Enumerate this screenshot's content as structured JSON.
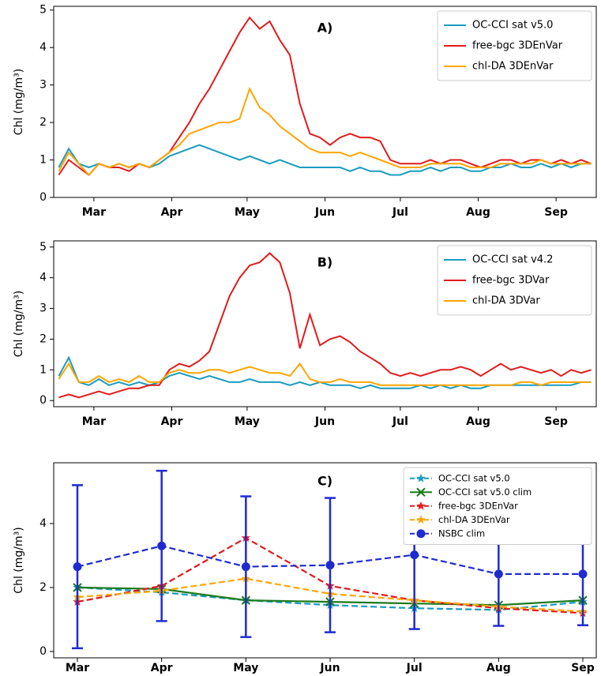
{
  "chart_data": [
    {
      "type": "line",
      "label": "A)",
      "ylabel": "Chl (mg/m³)",
      "xlim": [
        44,
        260
      ],
      "ylim": [
        0,
        5.1
      ],
      "yticks": [
        0,
        1,
        2,
        3,
        4,
        5
      ],
      "xticks": [
        {
          "value": 60,
          "label": "Mar"
        },
        {
          "value": 91,
          "label": "Apr"
        },
        {
          "value": 121,
          "label": "May"
        },
        {
          "value": 152,
          "label": "Jun"
        },
        {
          "value": 182,
          "label": "Jul"
        },
        {
          "value": 213,
          "label": "Aug"
        },
        {
          "value": 244,
          "label": "Sep"
        }
      ],
      "legend": "upper right",
      "x": [
        46,
        50,
        54,
        58,
        62,
        66,
        70,
        74,
        78,
        82,
        86,
        90,
        94,
        98,
        102,
        106,
        110,
        114,
        118,
        122,
        126,
        130,
        134,
        138,
        142,
        146,
        150,
        154,
        158,
        162,
        166,
        170,
        174,
        178,
        182,
        186,
        190,
        194,
        198,
        202,
        206,
        210,
        214,
        218,
        222,
        226,
        230,
        234,
        238,
        242,
        246,
        250,
        254,
        258
      ],
      "series": [
        {
          "name": "OC-CCI sat v5.0",
          "color": "#1a9bbf",
          "values": [
            0.8,
            1.3,
            0.9,
            0.8,
            0.9,
            0.8,
            0.9,
            0.8,
            0.9,
            0.8,
            0.9,
            1.1,
            1.2,
            1.3,
            1.4,
            1.3,
            1.2,
            1.1,
            1.0,
            1.1,
            1.0,
            0.9,
            1.0,
            0.9,
            0.8,
            0.8,
            0.8,
            0.8,
            0.8,
            0.7,
            0.8,
            0.7,
            0.7,
            0.6,
            0.6,
            0.7,
            0.7,
            0.8,
            0.7,
            0.8,
            0.8,
            0.7,
            0.7,
            0.8,
            0.8,
            0.9,
            0.8,
            0.8,
            0.9,
            0.8,
            0.9,
            0.8,
            0.9,
            0.9
          ]
        },
        {
          "name": "free-bgc 3DEnVar",
          "color": "#e31a1c",
          "values": [
            0.6,
            1.0,
            0.8,
            0.6,
            0.9,
            0.8,
            0.8,
            0.7,
            0.9,
            0.8,
            1.0,
            1.2,
            1.6,
            2.0,
            2.5,
            2.9,
            3.4,
            3.9,
            4.4,
            4.8,
            4.5,
            4.7,
            4.2,
            3.8,
            2.5,
            1.7,
            1.6,
            1.4,
            1.6,
            1.7,
            1.6,
            1.6,
            1.5,
            1.0,
            0.9,
            0.9,
            0.9,
            1.0,
            0.9,
            1.0,
            1.0,
            0.9,
            0.8,
            0.9,
            1.0,
            1.0,
            0.9,
            1.0,
            1.0,
            0.9,
            1.0,
            0.9,
            1.0,
            0.9
          ]
        },
        {
          "name": "chl-DA 3DEnVar",
          "color": "#ffa500",
          "values": [
            0.7,
            1.2,
            0.9,
            0.6,
            0.9,
            0.8,
            0.9,
            0.8,
            0.9,
            0.8,
            1.0,
            1.2,
            1.4,
            1.7,
            1.8,
            1.9,
            2.0,
            2.0,
            2.1,
            2.9,
            2.4,
            2.2,
            1.9,
            1.7,
            1.5,
            1.3,
            1.2,
            1.2,
            1.2,
            1.1,
            1.2,
            1.1,
            1.0,
            0.9,
            0.8,
            0.8,
            0.8,
            0.9,
            0.9,
            0.9,
            0.9,
            0.8,
            0.8,
            0.8,
            0.9,
            0.9,
            0.9,
            0.9,
            1.0,
            0.9,
            0.9,
            0.9,
            0.9,
            0.9
          ]
        }
      ]
    },
    {
      "type": "line",
      "label": "B)",
      "ylabel": "Chl (mg/m³)",
      "xlim": [
        44,
        260
      ],
      "ylim": [
        -0.2,
        5.2
      ],
      "yticks": [
        0,
        1,
        2,
        3,
        4,
        5
      ],
      "xticks": [
        {
          "value": 60,
          "label": "Mar"
        },
        {
          "value": 91,
          "label": "Apr"
        },
        {
          "value": 121,
          "label": "May"
        },
        {
          "value": 152,
          "label": "Jun"
        },
        {
          "value": 182,
          "label": "Jul"
        },
        {
          "value": 213,
          "label": "Aug"
        },
        {
          "value": 244,
          "label": "Sep"
        }
      ],
      "legend": "upper right",
      "x": [
        46,
        50,
        54,
        58,
        62,
        66,
        70,
        74,
        78,
        82,
        86,
        90,
        94,
        98,
        102,
        106,
        110,
        114,
        118,
        122,
        126,
        130,
        134,
        138,
        142,
        146,
        150,
        154,
        158,
        162,
        166,
        170,
        174,
        178,
        182,
        186,
        190,
        194,
        198,
        202,
        206,
        210,
        214,
        218,
        222,
        226,
        230,
        234,
        238,
        242,
        246,
        250,
        254,
        258
      ],
      "series": [
        {
          "name": "OC-CCI sat v4.2",
          "color": "#1a9bbf",
          "values": [
            0.8,
            1.4,
            0.6,
            0.5,
            0.7,
            0.5,
            0.6,
            0.5,
            0.6,
            0.5,
            0.6,
            0.8,
            0.9,
            0.8,
            0.7,
            0.8,
            0.7,
            0.6,
            0.6,
            0.7,
            0.6,
            0.6,
            0.6,
            0.5,
            0.6,
            0.5,
            0.6,
            0.5,
            0.5,
            0.5,
            0.4,
            0.5,
            0.4,
            0.4,
            0.4,
            0.4,
            0.5,
            0.4,
            0.5,
            0.4,
            0.5,
            0.4,
            0.4,
            0.5,
            0.5,
            0.5,
            0.5,
            0.5,
            0.5,
            0.5,
            0.5,
            0.5,
            0.6,
            0.6
          ]
        },
        {
          "name": "free-bgc 3DVar",
          "color": "#e31a1c",
          "values": [
            0.1,
            0.2,
            0.1,
            0.2,
            0.3,
            0.2,
            0.3,
            0.4,
            0.4,
            0.5,
            0.5,
            1.0,
            1.2,
            1.1,
            1.3,
            1.6,
            2.5,
            3.4,
            4.0,
            4.4,
            4.5,
            4.8,
            4.5,
            3.5,
            1.7,
            2.8,
            1.8,
            2.0,
            2.1,
            1.9,
            1.6,
            1.4,
            1.2,
            0.9,
            0.8,
            0.9,
            0.8,
            0.9,
            1.0,
            1.0,
            1.1,
            1.0,
            0.8,
            1.0,
            1.2,
            1.0,
            1.1,
            1.0,
            0.9,
            1.0,
            0.8,
            1.0,
            0.9,
            1.0
          ]
        },
        {
          "name": "chl-DA 3DVar",
          "color": "#ffa500",
          "values": [
            0.7,
            1.2,
            0.6,
            0.6,
            0.8,
            0.6,
            0.7,
            0.6,
            0.8,
            0.6,
            0.6,
            0.9,
            1.0,
            0.9,
            0.9,
            1.0,
            1.0,
            0.9,
            1.0,
            1.1,
            1.0,
            0.9,
            0.9,
            0.8,
            1.2,
            0.7,
            0.6,
            0.6,
            0.7,
            0.6,
            0.6,
            0.6,
            0.5,
            0.5,
            0.5,
            0.5,
            0.5,
            0.5,
            0.5,
            0.5,
            0.5,
            0.5,
            0.5,
            0.5,
            0.5,
            0.5,
            0.6,
            0.6,
            0.5,
            0.6,
            0.6,
            0.6,
            0.6,
            0.6
          ]
        }
      ]
    },
    {
      "type": "line",
      "label": "C)",
      "ylabel": "Chl (mg/m³)",
      "ylim": [
        -0.2,
        5.9
      ],
      "yticks": [
        0,
        2,
        4
      ],
      "categories": [
        "Mar",
        "Apr",
        "May",
        "Jun",
        "Jul",
        "Aug",
        "Sep"
      ],
      "legend": "upper right",
      "series": [
        {
          "name": "OC-CCI sat v5.0",
          "color": "#1a9bbf",
          "marker": "star",
          "linestyle": "dashed",
          "values": [
            2.0,
            1.85,
            1.6,
            1.45,
            1.35,
            1.3,
            1.55
          ]
        },
        {
          "name": "OC-CCI sat v5.0 clim",
          "color": "#1a7a1a",
          "marker": "x",
          "linestyle": "solid",
          "values": [
            2.0,
            1.95,
            1.6,
            1.55,
            1.5,
            1.45,
            1.6
          ]
        },
        {
          "name": "free-bgc 3DEnVar",
          "color": "#e31a1c",
          "marker": "star",
          "linestyle": "dashed",
          "values": [
            1.55,
            2.05,
            3.55,
            2.05,
            1.6,
            1.35,
            1.2
          ]
        },
        {
          "name": "chl-DA 3DEnVar",
          "color": "#ffa500",
          "marker": "star",
          "linestyle": "dashed",
          "values": [
            1.7,
            1.9,
            2.28,
            1.8,
            1.6,
            1.4,
            1.25
          ]
        },
        {
          "name": "NSBC clim",
          "color": "#1f2bd1",
          "marker": "circle",
          "linestyle": "dashed",
          "values": [
            2.65,
            3.3,
            2.65,
            2.7,
            3.02,
            2.42,
            2.42
          ],
          "errors": [
            2.55,
            2.35,
            2.2,
            2.1,
            2.32,
            1.62,
            1.6
          ]
        }
      ]
    }
  ]
}
